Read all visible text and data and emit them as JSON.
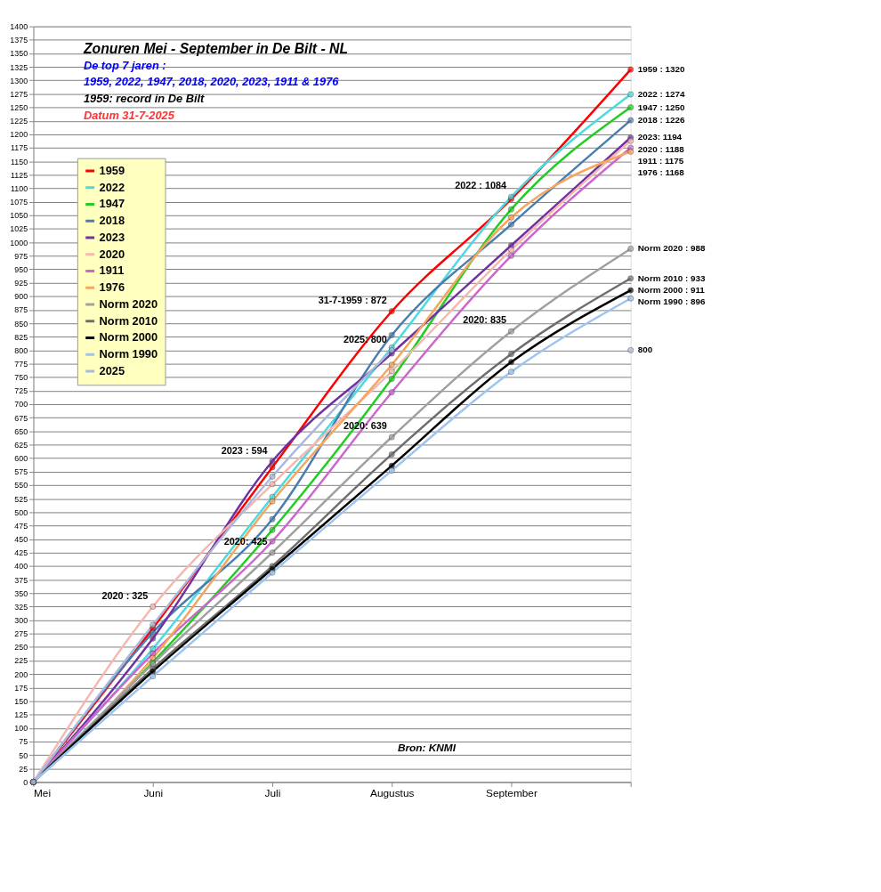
{
  "chart_data": {
    "type": "line",
    "title": "Zonuren Mei - September in De Bilt - NL",
    "subtitle": [
      "De top 7 jaren :",
      "1959, 2022, 1947, 2018, 2020, 2023, 1911 & 1976",
      "1959: record in De Bilt",
      "Datum 31-7-2025"
    ],
    "categories": [
      "Mei",
      "Juni",
      "Juli",
      "Augustus",
      "September",
      null
    ],
    "series": [
      {
        "name": "1959",
        "color": "#ff0000",
        "values": [
          0,
          285,
          583,
          872,
          1080,
          1320
        ],
        "value_labels": [
          null,
          null,
          null,
          "31-7-1959 : 872",
          null,
          "1959 : 1320"
        ]
      },
      {
        "name": "2022",
        "color": "#4dd9e0",
        "values": [
          0,
          247,
          528,
          805,
          1084,
          1274
        ],
        "value_labels": [
          null,
          null,
          null,
          null,
          "2022 : 1084",
          "2022 : 1274"
        ]
      },
      {
        "name": "1947",
        "color": "#22cc22",
        "values": [
          0,
          222,
          467,
          747,
          1061,
          1250
        ],
        "value_labels": [
          null,
          null,
          null,
          null,
          null,
          "1947 : 1250"
        ]
      },
      {
        "name": "2018",
        "color": "#4a7eb0",
        "values": [
          0,
          277,
          487,
          828,
          1033,
          1226
        ],
        "value_labels": [
          null,
          null,
          null,
          null,
          null,
          "2018 : 1226"
        ]
      },
      {
        "name": "2023",
        "color": "#7030a0",
        "values": [
          0,
          266,
          594,
          794,
          994,
          1194
        ],
        "value_labels": [
          null,
          null,
          "2023 : 594",
          null,
          null,
          "2023: 1194"
        ]
      },
      {
        "name": "2020",
        "color": "#f4b8b0",
        "values": [
          0,
          325,
          552,
          761,
          986,
          1188
        ],
        "value_labels": [
          null,
          "2020 : 325",
          null,
          null,
          null,
          "2020 : 1188"
        ]
      },
      {
        "name": "1911",
        "color": "#cc66cc",
        "values": [
          0,
          238,
          446,
          722,
          975,
          1175
        ],
        "value_labels": [
          null,
          null,
          null,
          null,
          null,
          "1911 : 1175"
        ]
      },
      {
        "name": "1976",
        "color": "#f6a55c",
        "values": [
          0,
          230,
          520,
          773,
          1046,
          1168
        ],
        "value_labels": [
          null,
          null,
          null,
          null,
          null,
          "1976 : 1168"
        ]
      },
      {
        "name": "Norm 2020",
        "color": "#a0a0a0",
        "values": [
          0,
          219,
          425,
          639,
          835,
          988
        ],
        "value_labels": [
          null,
          null,
          "2020: 425",
          "2020: 639",
          "2020: 835",
          "Norm 2020 : 988"
        ]
      },
      {
        "name": "Norm 2010",
        "color": "#6e6e6e",
        "values": [
          0,
          210,
          400,
          607,
          793,
          933
        ],
        "value_labels": [
          null,
          null,
          null,
          null,
          null,
          "Norm 2010 : 933"
        ]
      },
      {
        "name": "Norm 2000",
        "color": "#000000",
        "values": [
          0,
          205,
          395,
          586,
          778,
          911
        ],
        "value_labels": [
          null,
          null,
          null,
          null,
          null,
          "Norm 2000 : 911"
        ]
      },
      {
        "name": "Norm 1990",
        "color": "#9dc3f0",
        "values": [
          0,
          196,
          388,
          577,
          760,
          896
        ],
        "value_labels": [
          null,
          null,
          null,
          null,
          null,
          "Norm 1990 : 896"
        ]
      },
      {
        "name": "2025",
        "color": "#a9b8dc",
        "values": [
          0,
          291,
          566,
          800,
          null,
          800
        ],
        "value_labels": [
          null,
          null,
          null,
          "2025: 800",
          null,
          "800"
        ]
      }
    ],
    "ylim": [
      0,
      1400
    ],
    "yticks": [
      0,
      25,
      50,
      75,
      100,
      125,
      150,
      175,
      200,
      225,
      250,
      275,
      300,
      325,
      350,
      375,
      400,
      425,
      450,
      475,
      500,
      525,
      550,
      575,
      600,
      625,
      650,
      675,
      700,
      725,
      750,
      775,
      800,
      825,
      850,
      875,
      900,
      925,
      950,
      975,
      1000,
      1025,
      1050,
      1075,
      1100,
      1125,
      1150,
      1175,
      1200,
      1225,
      1250,
      1275,
      1300,
      1325,
      1350,
      1375,
      1400
    ],
    "grid": "y",
    "legend": "top left",
    "marker": "circle",
    "line_style": "solid",
    "annotations": [
      "Bron: KNMI"
    ]
  }
}
